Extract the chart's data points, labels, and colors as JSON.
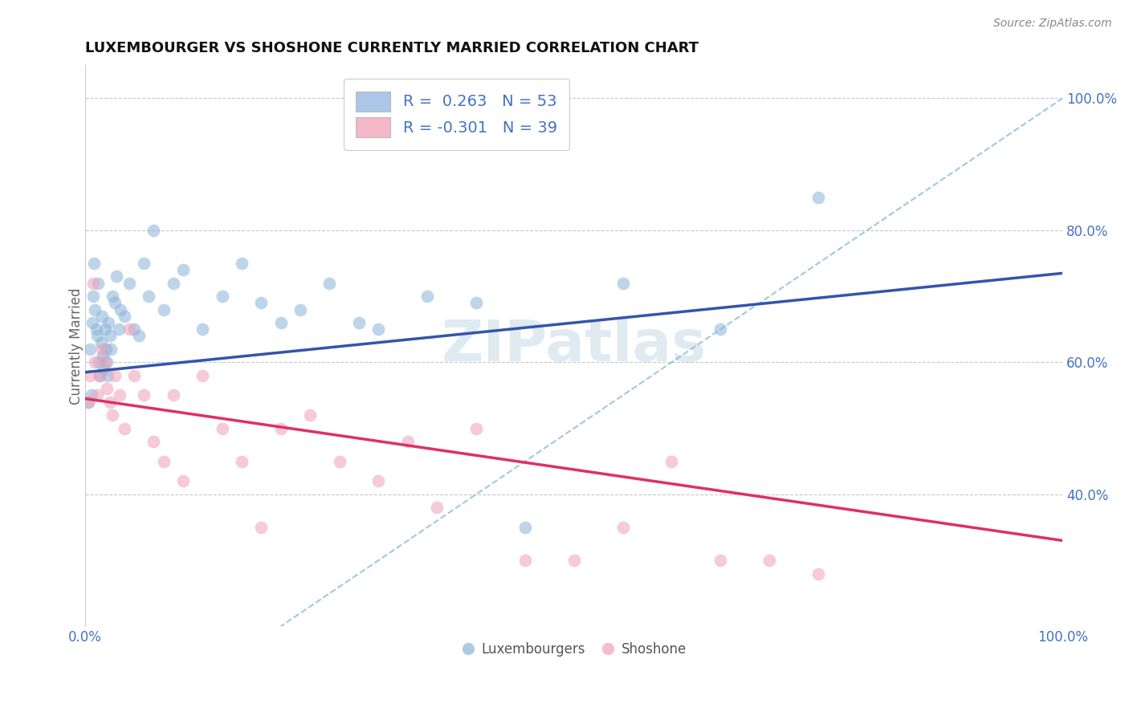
{
  "title": "LUXEMBOURGER VS SHOSHONE CURRENTLY MARRIED CORRELATION CHART",
  "source_text": "Source: ZipAtlas.com",
  "ylabel": "Currently Married",
  "legend_blue_label": "R =  0.263   N = 53",
  "legend_pink_label": "R = -0.301   N = 39",
  "legend_blue_color": "#adc6e8",
  "legend_pink_color": "#f4b8c8",
  "scatter_blue_color": "#8ab4d8",
  "scatter_pink_color": "#f0a0b8",
  "trend_blue_color": "#3355aa",
  "trend_pink_color": "#e03060",
  "diagonal_color": "#88bbd8",
  "background_color": "#ffffff",
  "grid_color": "#c8c8c8",
  "xlim": [
    0,
    1.0
  ],
  "ylim": [
    0.2,
    1.05
  ],
  "yticks": [
    0.4,
    0.6,
    0.8,
    1.0
  ],
  "xticks": [
    0.0,
    1.0
  ],
  "blue_x": [
    0.003,
    0.005,
    0.006,
    0.007,
    0.008,
    0.009,
    0.01,
    0.011,
    0.012,
    0.013,
    0.014,
    0.015,
    0.016,
    0.017,
    0.018,
    0.019,
    0.02,
    0.021,
    0.022,
    0.023,
    0.024,
    0.025,
    0.026,
    0.028,
    0.03,
    0.032,
    0.034,
    0.036,
    0.04,
    0.045,
    0.05,
    0.055,
    0.06,
    0.065,
    0.07,
    0.08,
    0.09,
    0.1,
    0.12,
    0.14,
    0.16,
    0.18,
    0.2,
    0.22,
    0.25,
    0.28,
    0.3,
    0.35,
    0.4,
    0.45,
    0.55,
    0.65,
    0.75
  ],
  "blue_y": [
    0.54,
    0.62,
    0.55,
    0.66,
    0.7,
    0.75,
    0.68,
    0.65,
    0.64,
    0.72,
    0.6,
    0.58,
    0.63,
    0.67,
    0.61,
    0.59,
    0.65,
    0.62,
    0.6,
    0.58,
    0.66,
    0.64,
    0.62,
    0.7,
    0.69,
    0.73,
    0.65,
    0.68,
    0.67,
    0.72,
    0.65,
    0.64,
    0.75,
    0.7,
    0.8,
    0.68,
    0.72,
    0.74,
    0.65,
    0.7,
    0.75,
    0.69,
    0.66,
    0.68,
    0.72,
    0.66,
    0.65,
    0.7,
    0.69,
    0.35,
    0.72,
    0.65,
    0.85
  ],
  "pink_x": [
    0.003,
    0.005,
    0.008,
    0.01,
    0.012,
    0.015,
    0.017,
    0.02,
    0.022,
    0.025,
    0.028,
    0.03,
    0.035,
    0.04,
    0.045,
    0.05,
    0.06,
    0.07,
    0.08,
    0.09,
    0.1,
    0.12,
    0.14,
    0.16,
    0.18,
    0.2,
    0.23,
    0.26,
    0.3,
    0.33,
    0.36,
    0.4,
    0.45,
    0.5,
    0.55,
    0.6,
    0.65,
    0.7,
    0.75
  ],
  "pink_y": [
    0.54,
    0.58,
    0.72,
    0.6,
    0.55,
    0.58,
    0.62,
    0.6,
    0.56,
    0.54,
    0.52,
    0.58,
    0.55,
    0.5,
    0.65,
    0.58,
    0.55,
    0.48,
    0.45,
    0.55,
    0.42,
    0.58,
    0.5,
    0.45,
    0.35,
    0.5,
    0.52,
    0.45,
    0.42,
    0.48,
    0.38,
    0.5,
    0.3,
    0.3,
    0.35,
    0.45,
    0.3,
    0.3,
    0.28
  ],
  "blue_trend_x0": 0.0,
  "blue_trend_y0": 0.585,
  "blue_trend_x1": 1.0,
  "blue_trend_y1": 0.735,
  "pink_trend_x0": 0.0,
  "pink_trend_y0": 0.545,
  "pink_trend_x1": 1.0,
  "pink_trend_y1": 0.33
}
